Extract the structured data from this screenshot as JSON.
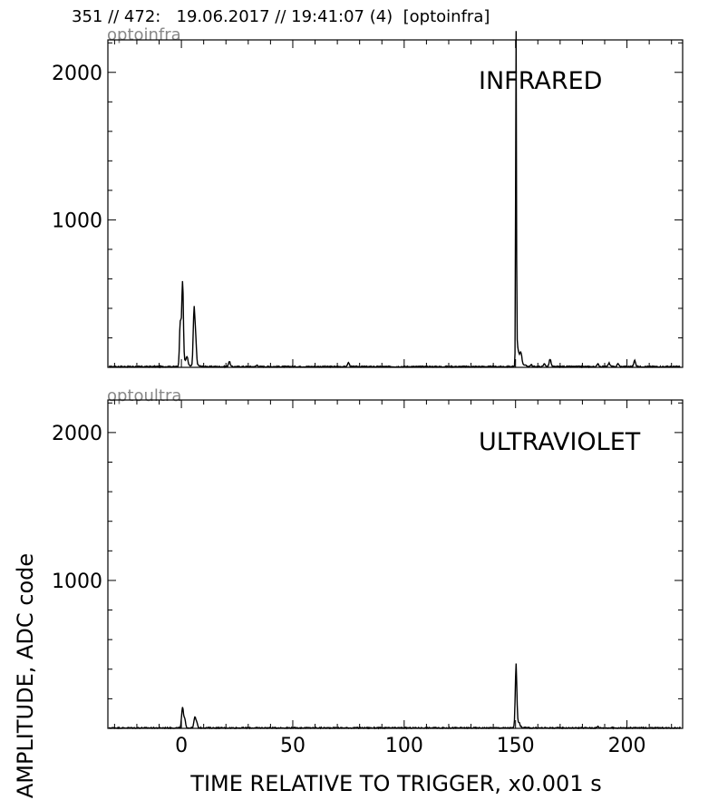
{
  "header": {
    "text": "351 // 472:   19.06.2017 // 19:41:07 (4)  [optoinfra]"
  },
  "colors": {
    "trace": "#000000",
    "tag": "#888888",
    "frame": "#000000",
    "background": "#ffffff"
  },
  "chart_data": [
    {
      "type": "line",
      "tag": "optoinfra",
      "label": "INFRARED",
      "xlim": [
        -33,
        225
      ],
      "ylim": [
        0,
        2220
      ],
      "x_ticks": [
        0,
        50,
        100,
        150,
        200
      ],
      "x_tick_labels": [
        "",
        "",
        "",
        "",
        ""
      ],
      "y_ticks": [
        1000,
        2000
      ],
      "y_tick_labels": [
        "1000",
        "2000"
      ],
      "baseline": 5,
      "peaks": [
        {
          "x": -0.5,
          "y": 310
        },
        {
          "x": 0.5,
          "y": 560
        },
        {
          "x": 2.5,
          "y": 60
        },
        {
          "x": 5.6,
          "y": 330
        },
        {
          "x": 6.3,
          "y": 200
        },
        {
          "x": 21.5,
          "y": 40
        },
        {
          "x": 34,
          "y": 15
        },
        {
          "x": 75,
          "y": 32
        },
        {
          "x": 150.2,
          "y": 2115
        },
        {
          "x": 152.4,
          "y": 65
        },
        {
          "x": 157,
          "y": 18
        },
        {
          "x": 165.5,
          "y": 55
        },
        {
          "x": 163,
          "y": 25
        },
        {
          "x": 187,
          "y": 22
        },
        {
          "x": 192,
          "y": 28
        },
        {
          "x": 196,
          "y": 25
        },
        {
          "x": 203.5,
          "y": 48
        }
      ]
    },
    {
      "type": "line",
      "tag": "optoultra",
      "label": "ULTRAVIOLET",
      "xlim": [
        -33,
        225
      ],
      "ylim": [
        0,
        2220
      ],
      "x_ticks": [
        0,
        50,
        100,
        150,
        200
      ],
      "x_tick_labels": [
        "0",
        "50",
        "100",
        "150",
        "200"
      ],
      "y_ticks": [
        1000,
        2000
      ],
      "y_tick_labels": [
        "1000",
        "2000"
      ],
      "xlabel": "TIME RELATIVE TO TRIGGER,   x0.001 s",
      "ylabel": "AMPLITUDE,  ADC code",
      "baseline": 3,
      "peaks": [
        {
          "x": 0.5,
          "y": 140
        },
        {
          "x": 1.5,
          "y": 60
        },
        {
          "x": 6,
          "y": 70
        },
        {
          "x": 6.8,
          "y": 40
        },
        {
          "x": 150.2,
          "y": 400
        },
        {
          "x": 151.5,
          "y": 25
        },
        {
          "x": 187,
          "y": 12
        }
      ]
    }
  ]
}
